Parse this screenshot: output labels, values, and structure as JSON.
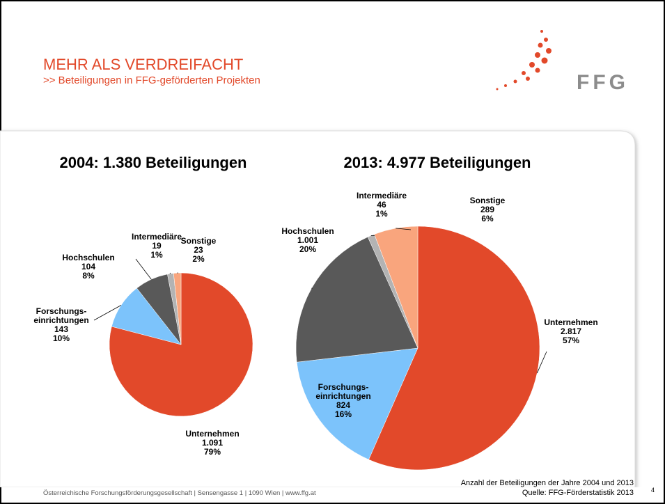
{
  "header": {
    "title": "MEHR ALS VERDREIFACHT",
    "subtitle": ">> Beteiligungen in FFG-geförderten Projekten",
    "logo": "FFG"
  },
  "chart_data": [
    {
      "type": "pie",
      "title": "2004: 1.380 Beteiligungen",
      "categories": [
        "Unternehmen",
        "Forschungs-\neinrichtungen",
        "Hochschulen",
        "Intermediäre",
        "Sonstige"
      ],
      "values": [
        1091,
        143,
        104,
        19,
        23
      ],
      "value_labels": [
        "1.091",
        "143",
        "104",
        "19",
        "23"
      ],
      "percentages": [
        79,
        10,
        8,
        1,
        2
      ],
      "percentage_labels": [
        "79%",
        "10%",
        "8%",
        "1%",
        "2%"
      ],
      "colors": [
        "#e2492a",
        "#7cc3fb",
        "#595959",
        "#b3b3b3",
        "#f9a57d"
      ]
    },
    {
      "type": "pie",
      "title": "2013: 4.977 Beteiligungen",
      "categories": [
        "Unternehmen",
        "Forschungs-\neinrichtungen",
        "Hochschulen",
        "Intermediäre",
        "Sonstige"
      ],
      "values": [
        2817,
        824,
        1001,
        46,
        289
      ],
      "value_labels": [
        "2.817",
        "824",
        "1.001",
        "46",
        "289"
      ],
      "percentages": [
        57,
        16,
        20,
        1,
        6
      ],
      "percentage_labels": [
        "57%",
        "16%",
        "20%",
        "1%",
        "6%"
      ],
      "colors": [
        "#e2492a",
        "#7cc3fb",
        "#595959",
        "#b3b3b3",
        "#f9a57d"
      ]
    }
  ],
  "footer": {
    "address": "Österreichische Forschungsförderungsgesellschaft | Sensengasse 1 | 1090 Wien | www.ffg.at",
    "note": "Anzahl der Beteiligungen der Jahre 2004 und 2013",
    "source": "Quelle: FFG-Förderstatistik 2013",
    "page": "4"
  }
}
